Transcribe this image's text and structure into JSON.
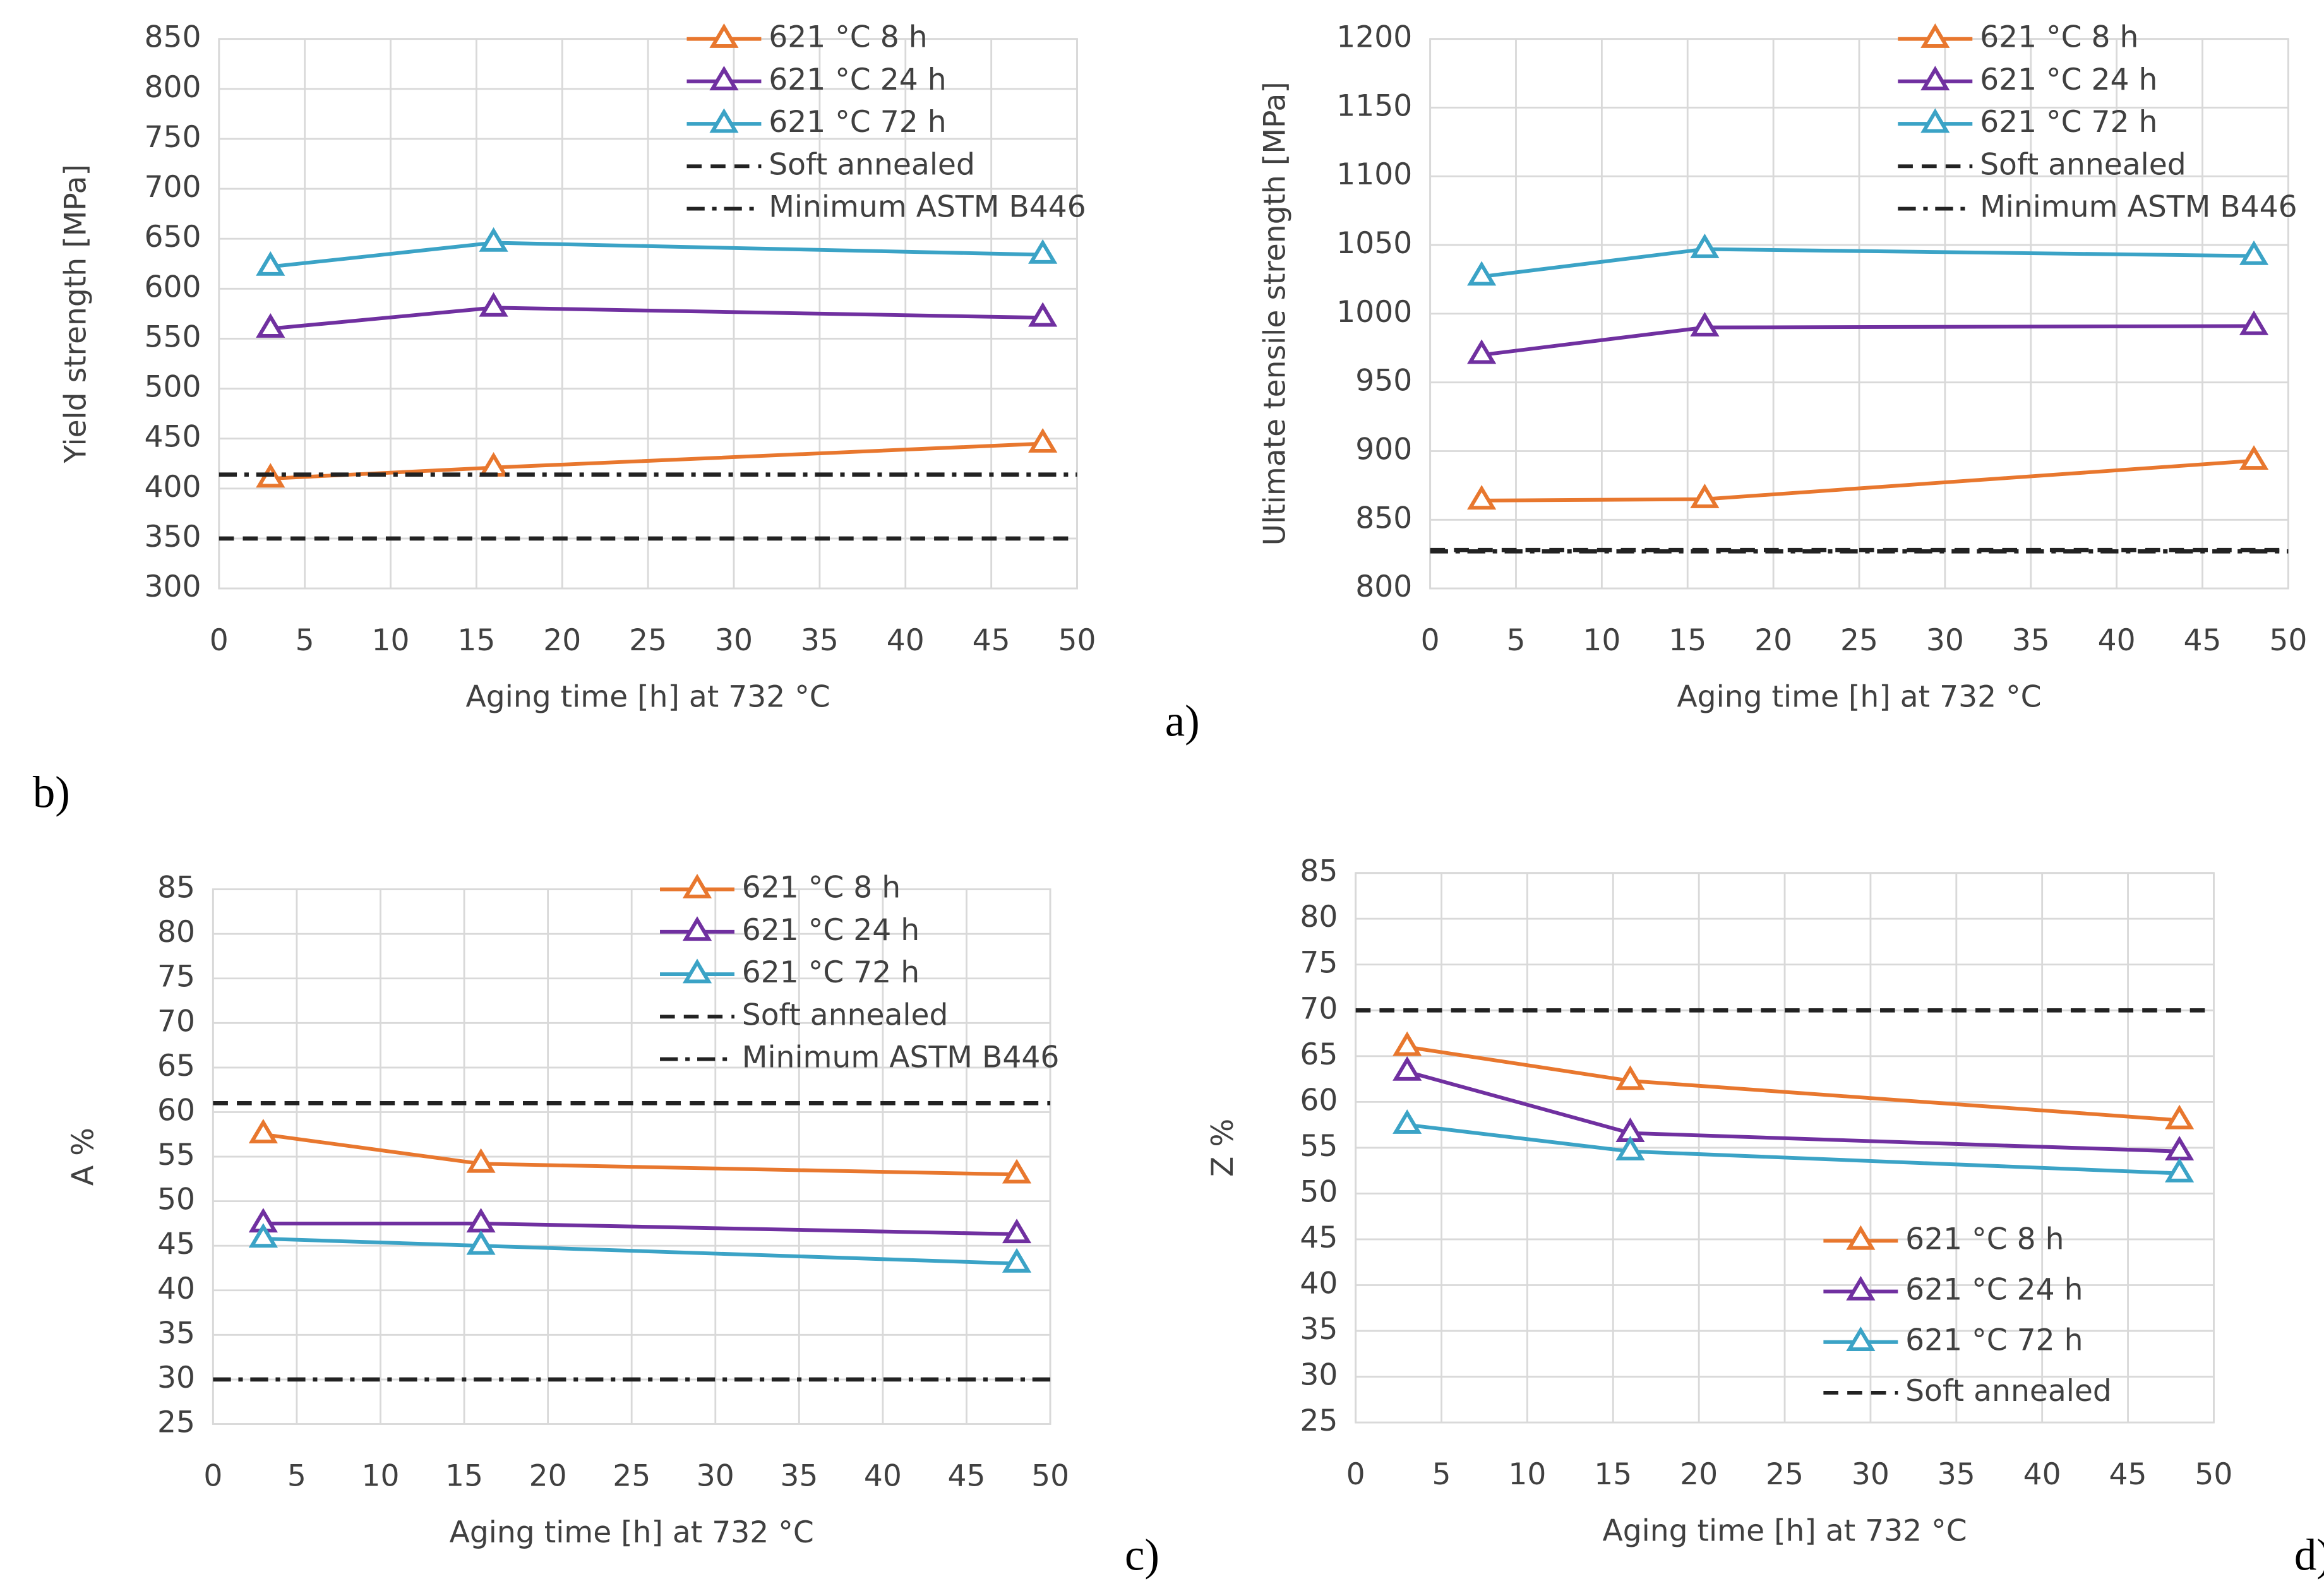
{
  "chart_data": [
    {
      "type": "line",
      "panel_label": "a)",
      "xlabel": "Aging time [h] at 732  °C",
      "ylabel": "Yield strength [MPa]",
      "xlim": [
        0,
        50
      ],
      "xticks": [
        0,
        5,
        10,
        15,
        20,
        25,
        30,
        35,
        40,
        45,
        50
      ],
      "ylim": [
        300,
        850
      ],
      "yticks": [
        300,
        350,
        400,
        450,
        500,
        550,
        600,
        650,
        700,
        750,
        800,
        850
      ],
      "grid": true,
      "legend": "upper right",
      "series": [
        {
          "name": "621 °C 8 h",
          "color": "#e8772e",
          "style": "solid",
          "marker": "triangle",
          "x": [
            3,
            16,
            48
          ],
          "values": [
            410,
            421,
            445
          ]
        },
        {
          "name": "621 °C 24 h",
          "color": "#7030a0",
          "style": "solid",
          "marker": "triangle",
          "x": [
            3,
            16,
            48
          ],
          "values": [
            560,
            581,
            571
          ]
        },
        {
          "name": "621 °C 72 h",
          "color": "#3ba3c6",
          "style": "solid",
          "marker": "triangle",
          "x": [
            3,
            16,
            48
          ],
          "values": [
            622,
            646,
            634
          ]
        },
        {
          "name": "Soft annealed",
          "color": "#222222",
          "style": "dashed",
          "marker": "none",
          "x": [
            0,
            50
          ],
          "values": [
            350,
            350
          ]
        },
        {
          "name": "Minimum ASTM B446",
          "color": "#222222",
          "style": "dashdot",
          "marker": "none",
          "x": [
            0,
            50
          ],
          "values": [
            414,
            414
          ]
        }
      ]
    },
    {
      "type": "line",
      "panel_label": "b)",
      "xlabel": "Aging time [h] at 732  °C",
      "ylabel": "Ultimate tensile strength [MPa]",
      "xlim": [
        0,
        50
      ],
      "xticks": [
        0,
        5,
        10,
        15,
        20,
        25,
        30,
        35,
        40,
        45,
        50
      ],
      "ylim": [
        800,
        1200
      ],
      "yticks": [
        800,
        850,
        900,
        950,
        1000,
        1050,
        1100,
        1150,
        1200
      ],
      "grid": true,
      "legend": "upper right",
      "series": [
        {
          "name": "621 °C 8 h",
          "color": "#e8772e",
          "style": "solid",
          "marker": "triangle",
          "x": [
            3,
            16,
            48
          ],
          "values": [
            864,
            865,
            893
          ]
        },
        {
          "name": "621 °C 24 h",
          "color": "#7030a0",
          "style": "solid",
          "marker": "triangle",
          "x": [
            3,
            16,
            48
          ],
          "values": [
            970,
            990,
            991
          ]
        },
        {
          "name": "621 °C 72 h",
          "color": "#3ba3c6",
          "style": "solid",
          "marker": "triangle",
          "x": [
            3,
            16,
            48
          ],
          "values": [
            1027,
            1047,
            1042
          ]
        },
        {
          "name": "Soft annealed",
          "color": "#222222",
          "style": "dashed",
          "marker": "none",
          "x": [
            0,
            50
          ],
          "values": [
            828,
            828
          ]
        },
        {
          "name": "Minimum ASTM B446",
          "color": "#222222",
          "style": "dashdot",
          "marker": "none",
          "x": [
            0,
            50
          ],
          "values": [
            827,
            827
          ]
        }
      ]
    },
    {
      "type": "line",
      "panel_label": "c)",
      "xlabel": "Aging time [h] at 732  °C",
      "ylabel": "A %",
      "xlim": [
        0,
        50
      ],
      "xticks": [
        0,
        5,
        10,
        15,
        20,
        25,
        30,
        35,
        40,
        45,
        50
      ],
      "ylim": [
        25,
        85
      ],
      "yticks": [
        25,
        30,
        35,
        40,
        45,
        50,
        55,
        60,
        65,
        70,
        75,
        80,
        85
      ],
      "grid": true,
      "legend": "upper right",
      "series": [
        {
          "name": "621 °C 8 h",
          "color": "#e8772e",
          "style": "solid",
          "marker": "triangle",
          "x": [
            3,
            16,
            48
          ],
          "values": [
            57.5,
            54.2,
            53
          ]
        },
        {
          "name": "621 °C 24 h",
          "color": "#7030a0",
          "style": "solid",
          "marker": "triangle",
          "x": [
            3,
            16,
            48
          ],
          "values": [
            47.5,
            47.5,
            46.3
          ]
        },
        {
          "name": "621 °C 72 h",
          "color": "#3ba3c6",
          "style": "solid",
          "marker": "triangle",
          "x": [
            3,
            16,
            48
          ],
          "values": [
            45.8,
            45,
            43
          ]
        },
        {
          "name": "Soft annealed",
          "color": "#222222",
          "style": "dashed",
          "marker": "none",
          "x": [
            0,
            50
          ],
          "values": [
            61,
            61
          ]
        },
        {
          "name": "Minimum ASTM B446",
          "color": "#222222",
          "style": "dashdot",
          "marker": "none",
          "x": [
            0,
            50
          ],
          "values": [
            30,
            30
          ]
        }
      ]
    },
    {
      "type": "line",
      "panel_label": "d)",
      "xlabel": "Aging time [h] at 732  °C",
      "ylabel": "Z %",
      "xlim": [
        0,
        50
      ],
      "xticks": [
        0,
        5,
        10,
        15,
        20,
        25,
        30,
        35,
        40,
        45,
        50
      ],
      "ylim": [
        25,
        85
      ],
      "yticks": [
        25,
        30,
        35,
        40,
        45,
        50,
        55,
        60,
        65,
        70,
        75,
        80,
        85
      ],
      "grid": true,
      "legend": "lower right",
      "series": [
        {
          "name": "621 °C 8 h",
          "color": "#e8772e",
          "style": "solid",
          "marker": "triangle",
          "x": [
            3,
            16,
            48
          ],
          "values": [
            66,
            62.3,
            58
          ]
        },
        {
          "name": "621 °C 24 h",
          "color": "#7030a0",
          "style": "solid",
          "marker": "triangle",
          "x": [
            3,
            16,
            48
          ],
          "values": [
            63.3,
            56.6,
            54.6
          ]
        },
        {
          "name": "621 °C 72 h",
          "color": "#3ba3c6",
          "style": "solid",
          "marker": "triangle",
          "x": [
            3,
            16,
            48
          ],
          "values": [
            57.5,
            54.6,
            52.2
          ]
        },
        {
          "name": "Soft annealed",
          "color": "#222222",
          "style": "dashed",
          "marker": "none",
          "x": [
            0,
            50
          ],
          "values": [
            70,
            70
          ]
        }
      ]
    }
  ]
}
